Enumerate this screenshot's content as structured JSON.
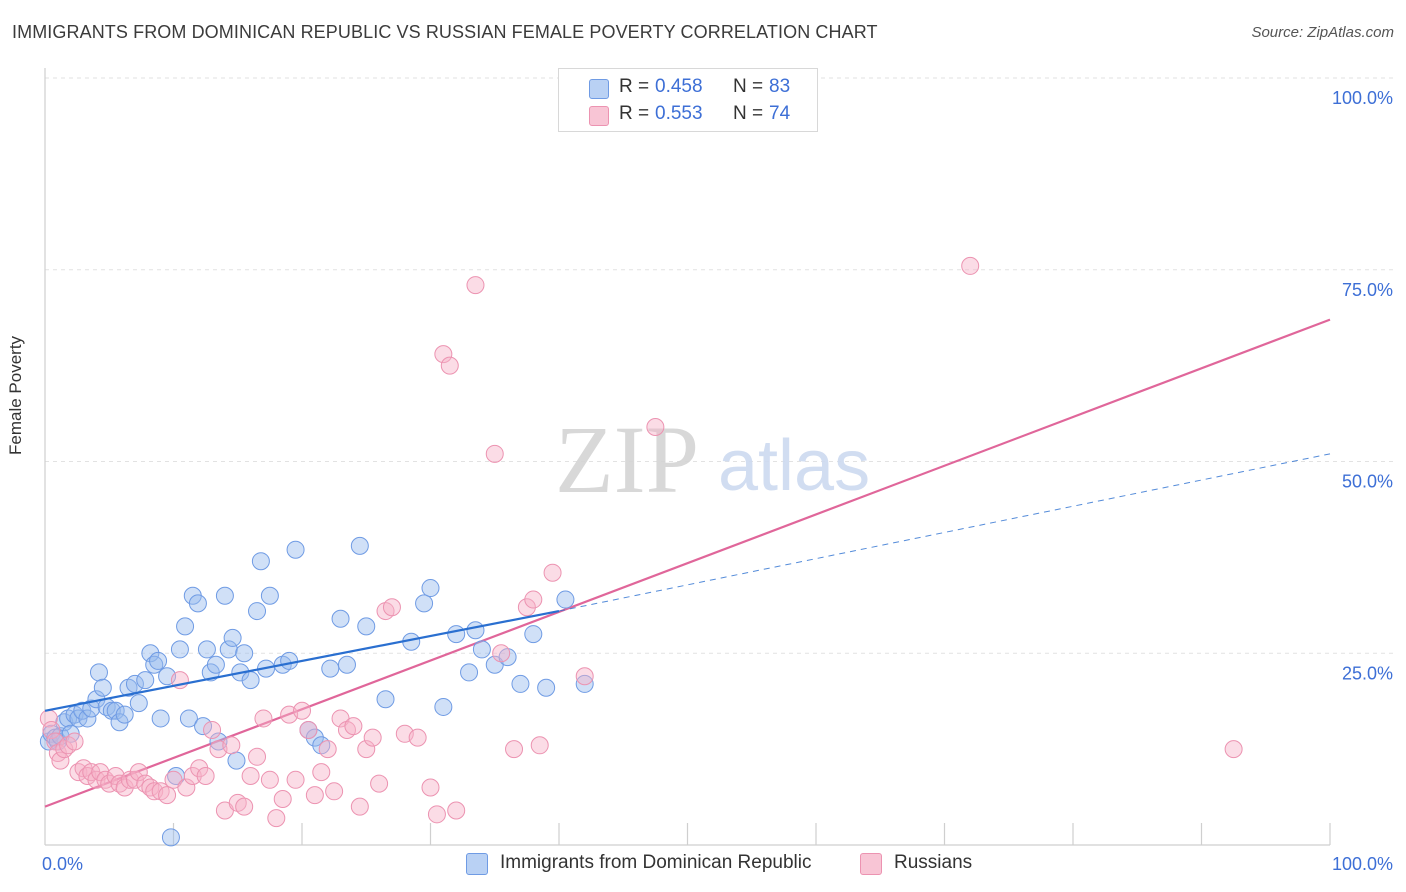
{
  "title": "IMMIGRANTS FROM DOMINICAN REPUBLIC VS RUSSIAN FEMALE POVERTY CORRELATION CHART",
  "source": "Source: ZipAtlas.com",
  "watermark": {
    "zip": "ZIP",
    "atlas": "atlas"
  },
  "stats_box": {
    "rows": [
      {
        "r_label": "R =",
        "r_value": "0.458",
        "n_label": "N =",
        "n_value": "83",
        "color": "#6f9be4"
      },
      {
        "r_label": "R =",
        "r_value": "0.553",
        "n_label": "N =",
        "n_value": "74",
        "color": "#ec93b1"
      }
    ]
  },
  "legend": {
    "items": [
      {
        "label": "Immigrants from Dominican Republic",
        "color": "#b9d1f4"
      },
      {
        "label": "Russians",
        "color": "#f8c5d5"
      }
    ]
  },
  "chart_data": {
    "type": "scatter",
    "title": "IMMIGRANTS FROM DOMINICAN REPUBLIC VS RUSSIAN FEMALE POVERTY CORRELATION CHART",
    "xlabel": "",
    "ylabel": "Female Poverty",
    "xlim": [
      0,
      100
    ],
    "ylim": [
      0,
      100
    ],
    "x_tick_labels": [
      "0.0%",
      "100.0%"
    ],
    "y_tick_labels": [
      "100.0%",
      "75.0%",
      "50.0%",
      "25.0%"
    ],
    "y_ticks": [
      100,
      75,
      50,
      25
    ],
    "grid": true,
    "legend_position": "bottom",
    "series": [
      {
        "name": "Immigrants from Dominican Republic",
        "color": "#6f9be4",
        "line_color": "#2a6fd0",
        "trend": {
          "x0": 0,
          "y0": 17.5,
          "x1": 40,
          "y1": 30.5,
          "dashed_to_x": 100,
          "dashed_to_y": 51
        },
        "points": [
          [
            0.3,
            13.5
          ],
          [
            0.5,
            14.5
          ],
          [
            0.8,
            14
          ],
          [
            1.0,
            13.5
          ],
          [
            1.2,
            14.2
          ],
          [
            1.5,
            16
          ],
          [
            1.8,
            16.5
          ],
          [
            2.0,
            14.5
          ],
          [
            2.3,
            17
          ],
          [
            2.6,
            16.5
          ],
          [
            2.9,
            17.5
          ],
          [
            3.3,
            16.5
          ],
          [
            3.6,
            17.8
          ],
          [
            4.0,
            19
          ],
          [
            4.2,
            22.5
          ],
          [
            4.5,
            20.5
          ],
          [
            4.8,
            18
          ],
          [
            5.2,
            17.5
          ],
          [
            5.5,
            17.5
          ],
          [
            5.8,
            16
          ],
          [
            6.2,
            17
          ],
          [
            6.5,
            20.5
          ],
          [
            7.0,
            21
          ],
          [
            7.3,
            18.5
          ],
          [
            7.8,
            21.5
          ],
          [
            8.2,
            25
          ],
          [
            8.5,
            23.5
          ],
          [
            8.8,
            24
          ],
          [
            9.0,
            16.5
          ],
          [
            9.5,
            22
          ],
          [
            9.8,
            1
          ],
          [
            10.2,
            9
          ],
          [
            10.5,
            25.5
          ],
          [
            10.9,
            28.5
          ],
          [
            11.2,
            16.5
          ],
          [
            11.5,
            32.5
          ],
          [
            11.9,
            31.5
          ],
          [
            12.3,
            15.5
          ],
          [
            12.6,
            25.5
          ],
          [
            12.9,
            22.5
          ],
          [
            13.3,
            23.5
          ],
          [
            13.5,
            13.5
          ],
          [
            14.0,
            32.5
          ],
          [
            14.3,
            25.5
          ],
          [
            14.6,
            27
          ],
          [
            14.9,
            11
          ],
          [
            15.2,
            22.5
          ],
          [
            15.5,
            25
          ],
          [
            16.0,
            21.5
          ],
          [
            16.5,
            30.5
          ],
          [
            16.8,
            37
          ],
          [
            17.2,
            23
          ],
          [
            17.5,
            32.5
          ],
          [
            18.5,
            23.5
          ],
          [
            19.0,
            24
          ],
          [
            19.5,
            38.5
          ],
          [
            20.5,
            15
          ],
          [
            21.0,
            14
          ],
          [
            21.5,
            13
          ],
          [
            22.2,
            23
          ],
          [
            23.0,
            29.5
          ],
          [
            23.5,
            23.5
          ],
          [
            24.5,
            39
          ],
          [
            25.0,
            28.5
          ],
          [
            26.5,
            19
          ],
          [
            28.5,
            26.5
          ],
          [
            29.5,
            31.5
          ],
          [
            30.0,
            33.5
          ],
          [
            31.0,
            18
          ],
          [
            32.0,
            27.5
          ],
          [
            33.0,
            22.5
          ],
          [
            33.5,
            28
          ],
          [
            34.0,
            25.5
          ],
          [
            35.0,
            23.5
          ],
          [
            36.0,
            24.5
          ],
          [
            37.0,
            21
          ],
          [
            38.0,
            27.5
          ],
          [
            39.0,
            20.5
          ],
          [
            40.5,
            32
          ],
          [
            42.0,
            21
          ]
        ]
      },
      {
        "name": "Russians",
        "color": "#ec93b1",
        "line_color": "#e0669a",
        "trend": {
          "x0": 0,
          "y0": 5,
          "x1": 100,
          "y1": 68.5
        },
        "points": [
          [
            0.3,
            16.5
          ],
          [
            0.5,
            15
          ],
          [
            0.8,
            13.5
          ],
          [
            1.0,
            12
          ],
          [
            1.2,
            11
          ],
          [
            1.5,
            12.5
          ],
          [
            1.8,
            13
          ],
          [
            2.3,
            13.5
          ],
          [
            2.6,
            9.5
          ],
          [
            3.0,
            10
          ],
          [
            3.3,
            9
          ],
          [
            3.6,
            9.5
          ],
          [
            4.0,
            8.5
          ],
          [
            4.3,
            9.5
          ],
          [
            4.7,
            8.5
          ],
          [
            5.0,
            8
          ],
          [
            5.5,
            9
          ],
          [
            5.8,
            8
          ],
          [
            6.2,
            7.5
          ],
          [
            6.6,
            8.5
          ],
          [
            7.0,
            8.5
          ],
          [
            7.3,
            9.5
          ],
          [
            7.8,
            8
          ],
          [
            8.2,
            7.5
          ],
          [
            8.5,
            7
          ],
          [
            9.0,
            7
          ],
          [
            9.5,
            6.5
          ],
          [
            10.0,
            8.5
          ],
          [
            10.5,
            21.5
          ],
          [
            11.0,
            7.5
          ],
          [
            11.5,
            9
          ],
          [
            12.0,
            10
          ],
          [
            12.5,
            9
          ],
          [
            13.0,
            15
          ],
          [
            13.5,
            12.5
          ],
          [
            14.0,
            4.5
          ],
          [
            14.5,
            13
          ],
          [
            15.0,
            5.5
          ],
          [
            15.5,
            5
          ],
          [
            16.0,
            9
          ],
          [
            16.5,
            11.5
          ],
          [
            17.0,
            16.5
          ],
          [
            17.5,
            8.5
          ],
          [
            18.0,
            3.5
          ],
          [
            18.5,
            6
          ],
          [
            19.0,
            17
          ],
          [
            19.5,
            8.5
          ],
          [
            20.0,
            17.5
          ],
          [
            20.5,
            15
          ],
          [
            21.0,
            6.5
          ],
          [
            21.5,
            9.5
          ],
          [
            22.0,
            12.5
          ],
          [
            22.5,
            7
          ],
          [
            23.0,
            16.5
          ],
          [
            23.5,
            15
          ],
          [
            24.0,
            15.5
          ],
          [
            24.5,
            5
          ],
          [
            25.0,
            12.5
          ],
          [
            25.5,
            14
          ],
          [
            26.0,
            8
          ],
          [
            26.5,
            30.5
          ],
          [
            27.0,
            31
          ],
          [
            28.0,
            14.5
          ],
          [
            29.0,
            14
          ],
          [
            30.0,
            7.5
          ],
          [
            30.5,
            4
          ],
          [
            31.0,
            64
          ],
          [
            31.5,
            62.5
          ],
          [
            32.0,
            4.5
          ],
          [
            33.5,
            73
          ],
          [
            35.0,
            51
          ],
          [
            35.5,
            25
          ],
          [
            36.5,
            12.5
          ],
          [
            37.5,
            31
          ],
          [
            38.0,
            32
          ],
          [
            38.5,
            13
          ],
          [
            39.5,
            35.5
          ],
          [
            42.0,
            22
          ],
          [
            47.5,
            54.5
          ],
          [
            72.0,
            75.5
          ],
          [
            92.5,
            12.5
          ]
        ]
      }
    ]
  }
}
